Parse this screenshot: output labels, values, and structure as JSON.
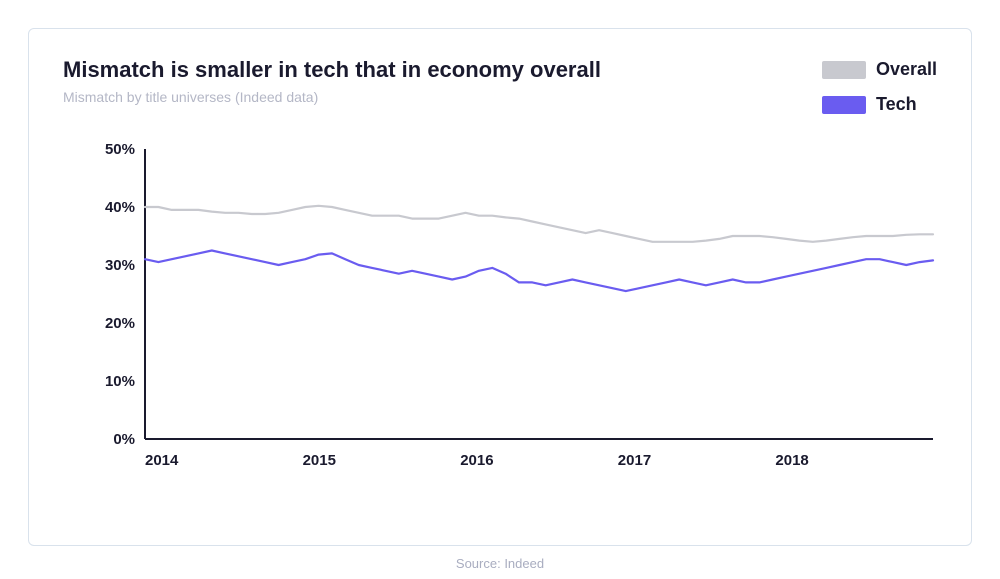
{
  "chart": {
    "type": "line",
    "title": "Mismatch is smaller in tech that in economy overall",
    "subtitle": "Mismatch by title universes (Indeed data)",
    "source_label": "Source: Indeed",
    "background_color": "#ffffff",
    "card_border_color": "#d9e2ec",
    "title_fontsize": 22,
    "subtitle_fontsize": 14,
    "subtitle_color": "#b4b7c6",
    "axis_color": "#1a1a2e",
    "axis_line_width": 2,
    "tick_font_weight": 700,
    "ylim": [
      0,
      50
    ],
    "ytick_step": 10,
    "ytick_suffix": "%",
    "x_start_year": 2014,
    "x_end_year_exclusive": 2019,
    "x_tick_years": [
      2014,
      2015,
      2016,
      2017,
      2018
    ],
    "series": [
      {
        "name": "Overall",
        "color": "#c8c9cf",
        "line_width": 2.2,
        "values": [
          40,
          40,
          39.5,
          39.5,
          39.5,
          39.2,
          39,
          39,
          38.8,
          38.8,
          39,
          39.5,
          40,
          40.2,
          40,
          39.5,
          39,
          38.5,
          38.5,
          38.5,
          38,
          38,
          38,
          38.5,
          39,
          38.5,
          38.5,
          38.2,
          38,
          37.5,
          37,
          36.5,
          36,
          35.5,
          36,
          35.5,
          35,
          34.5,
          34,
          34,
          34,
          34,
          34.2,
          34.5,
          35,
          35,
          35,
          34.8,
          34.5,
          34.2,
          34,
          34.2,
          34.5,
          34.8,
          35,
          35,
          35,
          35.2,
          35.3,
          35.3
        ]
      },
      {
        "name": "Tech",
        "color": "#6a5cf0",
        "line_width": 2.2,
        "values": [
          31,
          30.5,
          31,
          31.5,
          32,
          32.5,
          32,
          31.5,
          31,
          30.5,
          30,
          30.5,
          31,
          31.8,
          32,
          31,
          30,
          29.5,
          29,
          28.5,
          29,
          28.5,
          28,
          27.5,
          28,
          29,
          29.5,
          28.5,
          27,
          27,
          26.5,
          27,
          27.5,
          27,
          26.5,
          26,
          25.5,
          26,
          26.5,
          27,
          27.5,
          27,
          26.5,
          27,
          27.5,
          27,
          27,
          27.5,
          28,
          28.5,
          29,
          29.5,
          30,
          30.5,
          31,
          31,
          30.5,
          30,
          30.5,
          30.8
        ]
      }
    ],
    "legend": {
      "position": "top-right",
      "swatch_width": 44,
      "swatch_height": 18,
      "label_fontsize": 18,
      "label_fontweight": 700
    }
  }
}
